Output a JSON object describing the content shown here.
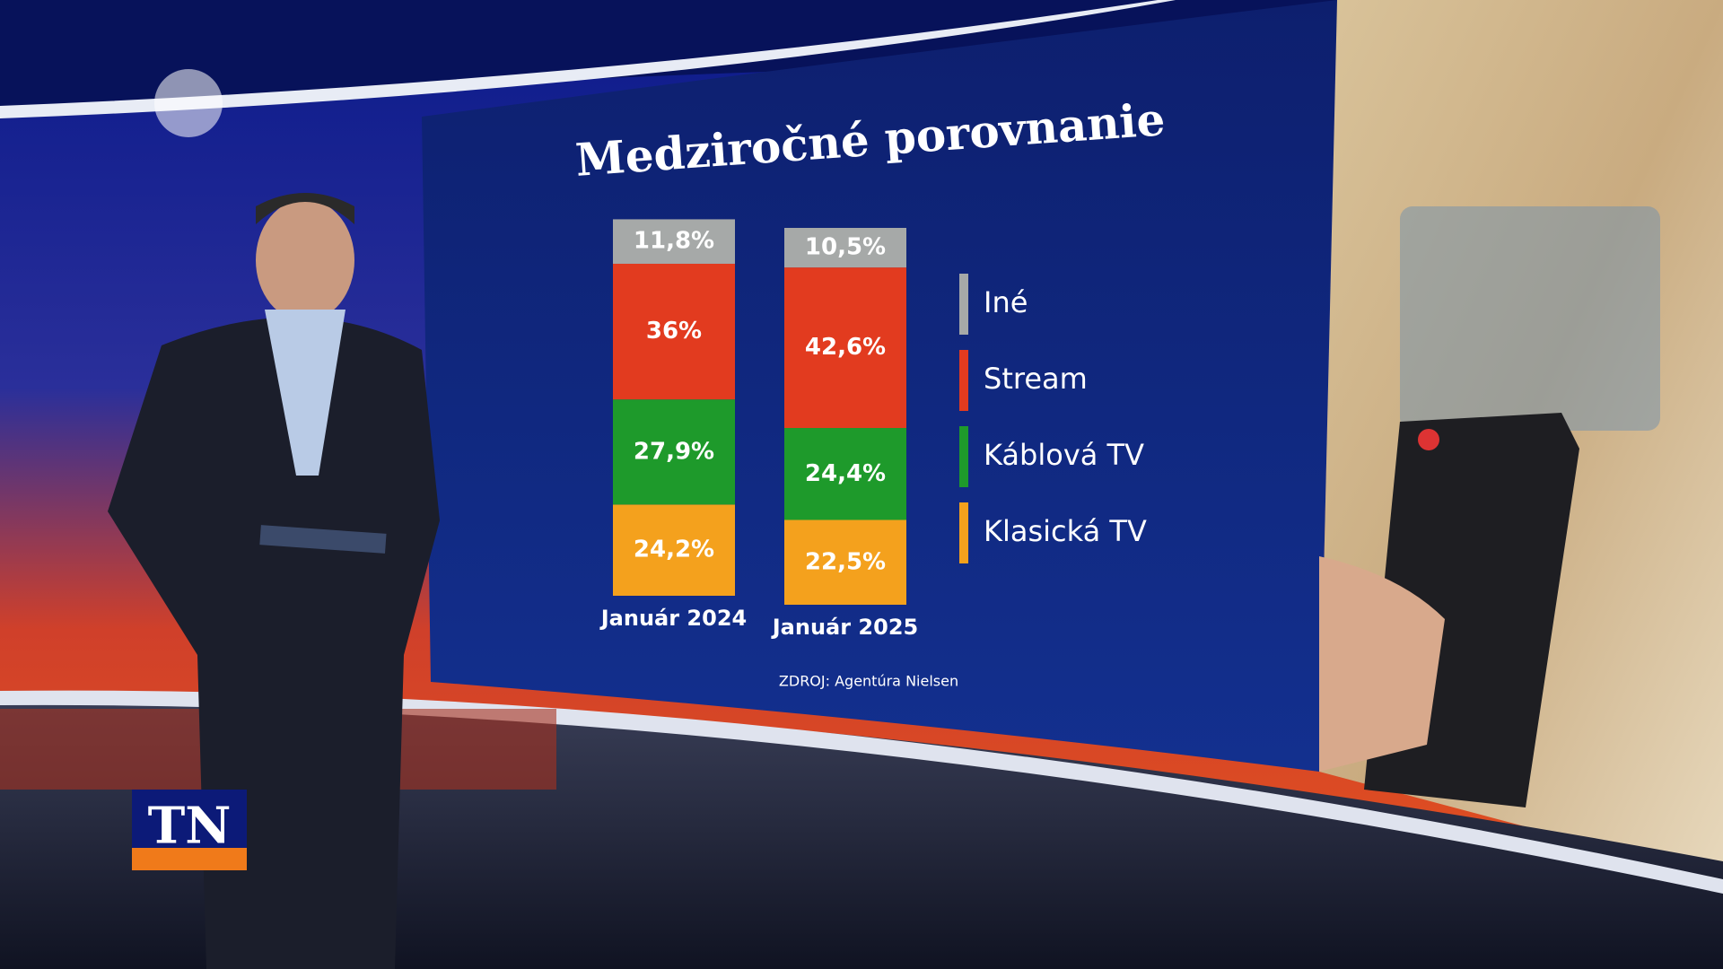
{
  "chart_data": {
    "type": "stacked-bar",
    "title": "Medziročné porovnanie",
    "categories": [
      "Január 2024",
      "Január 2025"
    ],
    "series": [
      {
        "name": "Klasická TV",
        "color": "#f4a11d",
        "values": [
          24.2,
          22.5
        ],
        "value_labels": [
          "24,2%",
          "22,5%"
        ]
      },
      {
        "name": "Káblová TV",
        "color": "#1e9a2b",
        "values": [
          27.9,
          24.4
        ],
        "value_labels": [
          "27,9%",
          "24,4%"
        ]
      },
      {
        "name": "Stream",
        "color": "#e23b1f",
        "values": [
          36,
          42.6
        ],
        "value_labels": [
          "36%",
          "42,6%"
        ]
      },
      {
        "name": "Iné",
        "color": "#a6a9a8",
        "values": [
          11.8,
          10.5
        ],
        "value_labels": [
          "11,8%",
          "10,5%"
        ]
      }
    ],
    "source": "ZDROJ: Agentúra Nielsen"
  },
  "logo": "TN"
}
